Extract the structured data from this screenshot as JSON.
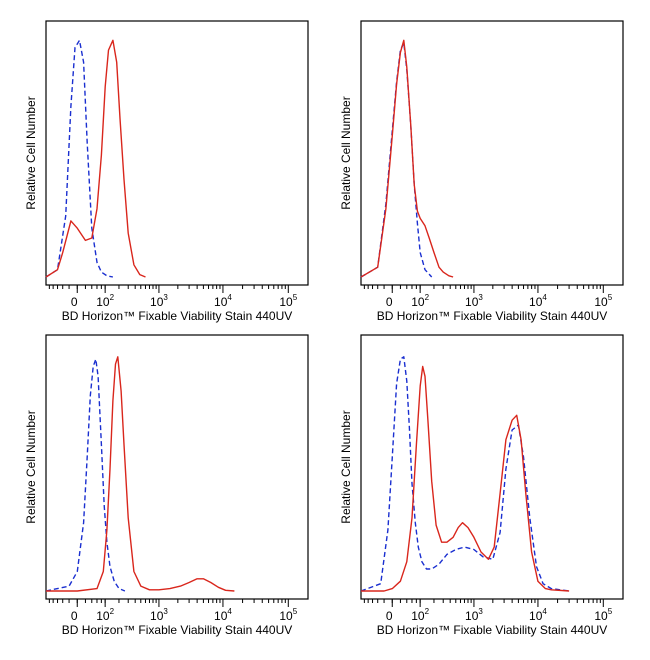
{
  "chart_data": [
    {
      "type": "line",
      "xlabel": "BD Horizon™ Fixable Viability Stain 440UV",
      "ylabel": "Relative Cell Number",
      "x_scale": "biexponential",
      "xlim": [
        -120,
        200000
      ],
      "ylim": [
        0,
        100
      ],
      "x_ticks": [
        {
          "base": "0",
          "exp": ""
        },
        {
          "base": "10",
          "exp": "2"
        },
        {
          "base": "10",
          "exp": "3"
        },
        {
          "base": "10",
          "exp": "4"
        },
        {
          "base": "10",
          "exp": "5"
        }
      ],
      "grid": false,
      "legend": "none",
      "series": [
        {
          "style": "dashed",
          "color": "#1a2fd0",
          "x": [
            -120,
            -60,
            -30,
            -15,
            -5,
            5,
            15,
            25,
            40,
            60,
            80,
            110,
            150
          ],
          "y": [
            0,
            3,
            25,
            70,
            94,
            97,
            88,
            55,
            20,
            6,
            2,
            0.5,
            0
          ]
        },
        {
          "style": "solid",
          "color": "#d9261c",
          "x": [
            -120,
            -60,
            -40,
            -15,
            0,
            20,
            40,
            60,
            80,
            100,
            120,
            150,
            180,
            210,
            250,
            300,
            380,
            480,
            600
          ],
          "y": [
            0,
            3,
            10,
            23,
            20,
            15,
            16,
            28,
            50,
            78,
            93,
            97,
            88,
            65,
            40,
            18,
            5,
            1,
            0
          ]
        }
      ]
    },
    {
      "type": "line",
      "xlabel": "BD Horizon™ Fixable Viability Stain 440UV",
      "ylabel": "Relative Cell Number",
      "x_scale": "biexponential",
      "xlim": [
        -120,
        200000
      ],
      "ylim": [
        0,
        100
      ],
      "x_ticks": [
        {
          "base": "0",
          "exp": ""
        },
        {
          "base": "10",
          "exp": "2"
        },
        {
          "base": "10",
          "exp": "3"
        },
        {
          "base": "10",
          "exp": "4"
        },
        {
          "base": "10",
          "exp": "5"
        }
      ],
      "grid": false,
      "legend": "none",
      "series": [
        {
          "style": "dashed",
          "color": "#1a2fd0",
          "x": [
            -120,
            -40,
            -15,
            0,
            10,
            20,
            30,
            40,
            55,
            70,
            85,
            100,
            130,
            180
          ],
          "y": [
            0,
            4,
            30,
            60,
            80,
            93,
            96,
            85,
            62,
            38,
            22,
            10,
            3,
            0
          ]
        },
        {
          "style": "solid",
          "color": "#d9261c",
          "x": [
            -120,
            -40,
            -15,
            0,
            10,
            20,
            30,
            40,
            55,
            70,
            85,
            100,
            130,
            160,
            200,
            250,
            300,
            380,
            450
          ],
          "y": [
            0,
            4,
            28,
            58,
            79,
            92,
            97,
            86,
            62,
            38,
            27,
            24,
            21,
            16,
            10,
            4,
            2,
            0.5,
            0
          ]
        }
      ]
    },
    {
      "type": "line",
      "xlabel": "BD Horizon™ Fixable Viability Stain 440UV",
      "ylabel": "Relative Cell Number",
      "x_scale": "biexponential",
      "xlim": [
        -120,
        200000
      ],
      "ylim": [
        0,
        100
      ],
      "x_ticks": [
        {
          "base": "0",
          "exp": ""
        },
        {
          "base": "10",
          "exp": "2"
        },
        {
          "base": "10",
          "exp": "3"
        },
        {
          "base": "10",
          "exp": "4"
        },
        {
          "base": "10",
          "exp": "5"
        }
      ],
      "grid": false,
      "legend": "none",
      "series": [
        {
          "style": "dashed",
          "color": "#1a2fd0",
          "x": [
            -120,
            -20,
            0,
            15,
            25,
            35,
            45,
            55,
            65,
            80,
            95,
            110,
            130,
            160,
            200,
            260
          ],
          "y": [
            0,
            2,
            8,
            28,
            55,
            80,
            92,
            95,
            88,
            60,
            35,
            20,
            10,
            4,
            1,
            0
          ]
        },
        {
          "style": "solid",
          "color": "#d9261c",
          "x": [
            -120,
            0,
            60,
            90,
            110,
            130,
            150,
            170,
            190,
            220,
            250,
            300,
            380,
            500,
            700,
            1000,
            1500,
            2200,
            3000,
            4000,
            5000,
            6500,
            8500,
            11000,
            15000
          ],
          "y": [
            0,
            0,
            1,
            8,
            25,
            50,
            78,
            93,
            96,
            82,
            60,
            30,
            8,
            2,
            0.5,
            0.5,
            1,
            2,
            3.5,
            5,
            5,
            3.5,
            1.5,
            0.3,
            0
          ]
        }
      ]
    },
    {
      "type": "line",
      "xlabel": "BD Horizon™ Fixable Viability Stain 440UV",
      "ylabel": "Relative Cell Number",
      "x_scale": "biexponential",
      "xlim": [
        -120,
        200000
      ],
      "ylim": [
        0,
        100
      ],
      "x_ticks": [
        {
          "base": "0",
          "exp": ""
        },
        {
          "base": "10",
          "exp": "2"
        },
        {
          "base": "10",
          "exp": "3"
        },
        {
          "base": "10",
          "exp": "4"
        },
        {
          "base": "10",
          "exp": "5"
        }
      ],
      "grid": false,
      "legend": "none",
      "series": [
        {
          "style": "dashed",
          "color": "#1a2fd0",
          "x": [
            -120,
            -30,
            -10,
            0,
            10,
            20,
            30,
            40,
            50,
            60,
            75,
            90,
            110,
            140,
            180,
            250,
            350,
            500,
            700,
            1000,
            1400,
            2000,
            2600,
            3200,
            4000,
            5000,
            6000,
            7500,
            9500,
            12000,
            16000,
            30000
          ],
          "y": [
            0,
            3,
            25,
            55,
            85,
            95,
            96,
            86,
            66,
            44,
            28,
            18,
            12,
            9,
            9,
            11,
            15,
            17,
            18,
            17,
            14,
            13,
            24,
            50,
            66,
            68,
            55,
            30,
            10,
            3,
            1,
            0
          ]
        },
        {
          "style": "solid",
          "color": "#d9261c",
          "x": [
            -120,
            -20,
            0,
            20,
            40,
            60,
            80,
            100,
            115,
            130,
            150,
            180,
            220,
            280,
            350,
            450,
            550,
            650,
            800,
            1000,
            1300,
            1700,
            2100,
            2600,
            3200,
            4000,
            4700,
            5500,
            6500,
            8000,
            10000,
            13000,
            16000,
            30000
          ],
          "y": [
            0,
            0,
            1,
            4,
            12,
            30,
            60,
            84,
            92,
            88,
            70,
            45,
            27,
            20,
            20,
            22,
            26,
            28,
            26,
            22,
            16,
            13,
            18,
            40,
            62,
            70,
            72,
            62,
            40,
            16,
            4,
            1,
            0.5,
            0
          ]
        }
      ]
    }
  ]
}
